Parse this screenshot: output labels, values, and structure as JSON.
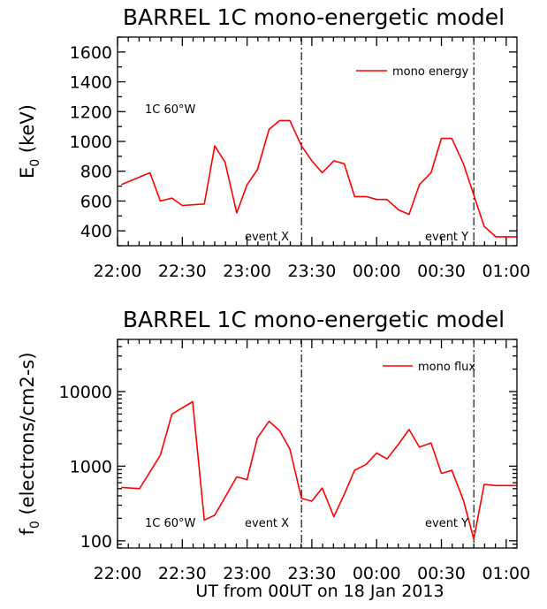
{
  "chart_data": [
    {
      "type": "line",
      "title": "BARREL 1C mono-energetic model",
      "ylabel": "E0 (keV)",
      "xlabel": "",
      "xlim": [
        22.0,
        25.083
      ],
      "ylim": [
        300,
        1700
      ],
      "yscale": "linear",
      "xticks": [
        22.0,
        22.5,
        23.0,
        23.5,
        24.0,
        24.5,
        25.0
      ],
      "xtick_labels": [
        "22:00",
        "22:30",
        "23:00",
        "23:30",
        "00:00",
        "00:30",
        "01:00"
      ],
      "yticks": [
        400,
        600,
        800,
        1000,
        1200,
        1400,
        1600
      ],
      "ytick_labels": [
        "400",
        "600",
        "800",
        "1000",
        "1200",
        "1400",
        "1600"
      ],
      "legend": {
        "entries": [
          "mono energy"
        ],
        "placement": "top-right"
      },
      "annotations": [
        "1C 60°W",
        "event X",
        "event Y"
      ],
      "event_lines_x": [
        23.42,
        24.75
      ],
      "series": [
        {
          "name": "mono energy",
          "color": "#ff0000",
          "x": [
            22.03,
            22.25,
            22.33,
            22.42,
            22.5,
            22.67,
            22.75,
            22.83,
            22.92,
            23.0,
            23.08,
            23.17,
            23.25,
            23.33,
            23.42,
            23.5,
            23.58,
            23.67,
            23.75,
            23.83,
            23.92,
            24.0,
            24.08,
            24.17,
            24.25,
            24.33,
            24.42,
            24.5,
            24.58,
            24.67,
            24.75,
            24.83,
            24.92,
            25.0,
            25.08
          ],
          "y": [
            710,
            790,
            600,
            620,
            570,
            580,
            970,
            860,
            520,
            710,
            810,
            1080,
            1140,
            1140,
            970,
            870,
            790,
            870,
            850,
            630,
            630,
            610,
            610,
            540,
            510,
            710,
            790,
            1020,
            1020,
            850,
            640,
            430,
            360,
            360,
            360
          ]
        }
      ]
    },
    {
      "type": "line",
      "title": "BARREL 1C mono-energetic model",
      "ylabel": "f0 (electrons/cm2-s)",
      "xlabel": "UT from 00UT on 18 Jan 2013",
      "xlim": [
        22.0,
        25.083
      ],
      "ylim": [
        80,
        50000
      ],
      "yscale": "log",
      "xticks": [
        22.0,
        22.5,
        23.0,
        23.5,
        24.0,
        24.5,
        25.0
      ],
      "xtick_labels": [
        "22:00",
        "22:30",
        "23:00",
        "23:30",
        "00:00",
        "00:30",
        "01:00"
      ],
      "yticks": [
        100,
        1000,
        10000
      ],
      "ytick_labels": [
        "100",
        "1000",
        "10000"
      ],
      "legend": {
        "entries": [
          "mono flux"
        ],
        "placement": "top-right"
      },
      "annotations": [
        "1C 60°W",
        "event X",
        "event Y"
      ],
      "event_lines_x": [
        23.42,
        24.75
      ],
      "series": [
        {
          "name": "mono flux",
          "color": "#ff0000",
          "x": [
            22.03,
            22.17,
            22.33,
            22.42,
            22.58,
            22.67,
            22.75,
            22.92,
            23.0,
            23.08,
            23.17,
            23.25,
            23.33,
            23.42,
            23.5,
            23.58,
            23.67,
            23.75,
            23.83,
            23.92,
            24.0,
            24.08,
            24.17,
            24.25,
            24.33,
            24.42,
            24.5,
            24.58,
            24.67,
            24.75,
            24.83,
            24.92,
            25.0,
            25.08
          ],
          "y": [
            520,
            500,
            1400,
            5000,
            7300,
            190,
            220,
            720,
            660,
            2400,
            4000,
            3000,
            1700,
            370,
            340,
            510,
            210,
            420,
            880,
            1060,
            1500,
            1250,
            1980,
            3100,
            1800,
            2050,
            800,
            880,
            350,
            105,
            570,
            550,
            550,
            550
          ]
        }
      ]
    }
  ]
}
